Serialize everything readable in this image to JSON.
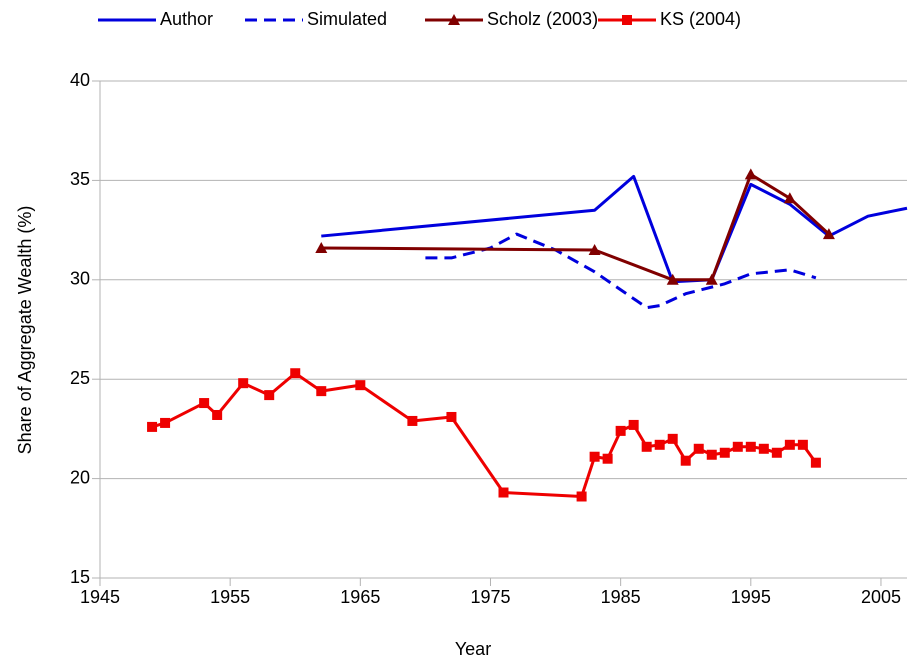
{
  "chart_data": {
    "type": "line",
    "xlabel": "Year",
    "ylabel": "Share of Aggregate Wealth (%)",
    "xlim": [
      1945,
      2007
    ],
    "xticks": [
      1945,
      1955,
      1965,
      1975,
      1985,
      1995,
      2005
    ],
    "ylim": [
      15,
      40
    ],
    "yticks": [
      15,
      20,
      25,
      30,
      35,
      40
    ],
    "grid": true,
    "legend": "top",
    "series": [
      {
        "name": "Author",
        "color": "#0000dd",
        "dash": false,
        "marker": null,
        "x": [
          1962,
          1983,
          1986,
          1989,
          1992,
          1995,
          1998,
          2001,
          2004,
          2007
        ],
        "values": [
          32.2,
          33.5,
          35.2,
          29.9,
          30.0,
          34.8,
          33.8,
          32.2,
          33.2,
          33.6
        ]
      },
      {
        "name": "Simulated",
        "color": "#0000dd",
        "dash": true,
        "marker": null,
        "x": [
          1970,
          1972,
          1975,
          1977,
          1980,
          1983,
          1985,
          1987,
          1988,
          1990,
          1993,
          1995,
          1998,
          2000
        ],
        "values": [
          31.1,
          31.1,
          31.6,
          32.3,
          31.5,
          30.4,
          29.5,
          28.6,
          28.7,
          29.3,
          29.8,
          30.3,
          30.5,
          30.1
        ]
      },
      {
        "name": "Scholz (2003)",
        "color": "#800000",
        "dash": false,
        "marker": "triangle",
        "x": [
          1962,
          1983,
          1989,
          1992,
          1995,
          1998,
          2001
        ],
        "values": [
          31.6,
          31.5,
          30.0,
          30.0,
          35.3,
          34.1,
          32.3
        ]
      },
      {
        "name": "KS (2004)",
        "color": "#ee0000",
        "dash": false,
        "marker": "square",
        "x": [
          1949,
          1950,
          1953,
          1954,
          1956,
          1958,
          1960,
          1962,
          1965,
          1969,
          1972,
          1976,
          1982,
          1983,
          1984,
          1985,
          1986,
          1987,
          1988,
          1989,
          1990,
          1991,
          1992,
          1993,
          1994,
          1995,
          1996,
          1997,
          1998,
          1999,
          2000
        ],
        "values": [
          22.6,
          22.8,
          23.8,
          23.2,
          24.8,
          24.2,
          25.3,
          24.4,
          24.7,
          22.9,
          23.1,
          19.3,
          19.1,
          21.1,
          21.0,
          22.4,
          22.7,
          21.6,
          21.7,
          22.0,
          20.9,
          21.5,
          21.2,
          21.3,
          21.6,
          21.6,
          21.5,
          21.3,
          21.7,
          21.7,
          20.8
        ]
      }
    ]
  }
}
